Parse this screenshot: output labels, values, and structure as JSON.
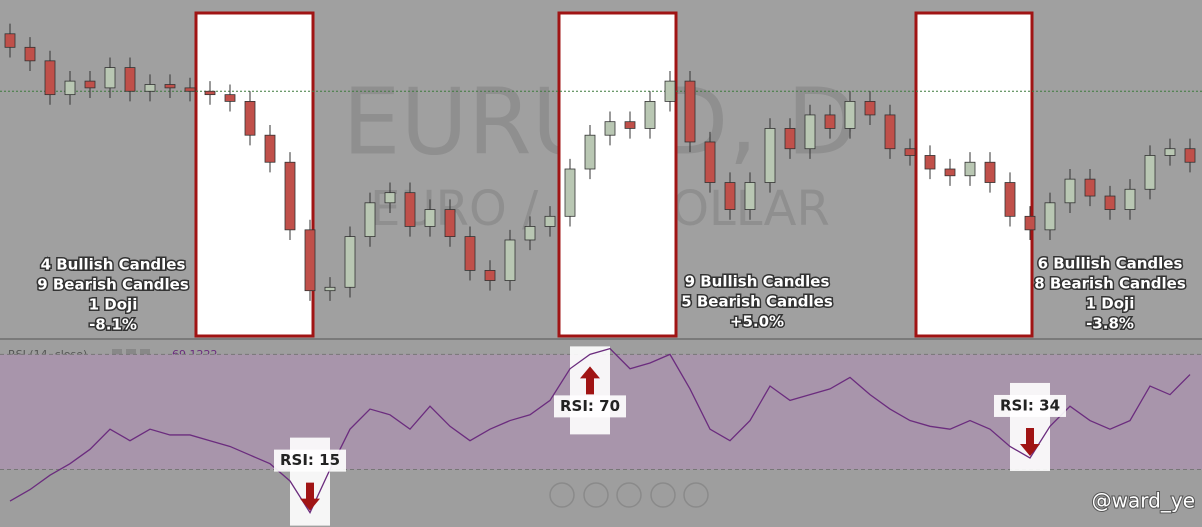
{
  "watermark": {
    "symbol": "EURUSD, D",
    "name": "EURO / US DOLLAR"
  },
  "indicator": {
    "name": "RSI (14, close)",
    "last": 69.1222
  },
  "credit": "@ward_ye",
  "summaries": [
    [
      "4 Bullish Candles",
      "9 Bearish Candles",
      "1 Doji",
      "-8.1%"
    ],
    [
      "9 Bullish Candles",
      "5 Bearish Candles",
      "+5.0%"
    ],
    [
      "6 Bullish Candles",
      "8 Bearish Candles",
      "1 Doji",
      "-3.8%"
    ]
  ],
  "callouts": [
    {
      "value": 15,
      "label": "RSI: 15"
    },
    {
      "value": 70,
      "label": "RSI: 70"
    },
    {
      "value": 34,
      "label": "RSI: 34"
    }
  ],
  "chart_data": [
    {
      "type": "candlestick",
      "ylim": [
        0,
        100
      ],
      "up_color": "#b9c7b3",
      "down_color": "#c0504a",
      "last_price": 73,
      "open": [
        90,
        86,
        82,
        72,
        76,
        74,
        80,
        73,
        75,
        74,
        73,
        72,
        70,
        60,
        52,
        32,
        14,
        15,
        30,
        40,
        43,
        33,
        38,
        30,
        20,
        17,
        29,
        33,
        36,
        50,
        60,
        64,
        62,
        70,
        76,
        58,
        46,
        38,
        46,
        62,
        56,
        66,
        62,
        70,
        66,
        56,
        54,
        50,
        48,
        52,
        46,
        36,
        32,
        40,
        47,
        42,
        38,
        44,
        54,
        56
      ],
      "high": [
        93,
        89,
        85,
        79,
        79,
        83,
        83,
        78,
        78,
        77,
        76,
        75,
        73,
        63,
        55,
        35,
        18,
        33,
        43,
        46,
        46,
        41,
        41,
        33,
        23,
        32,
        36,
        39,
        53,
        63,
        67,
        67,
        73,
        79,
        79,
        61,
        49,
        49,
        65,
        65,
        69,
        69,
        73,
        73,
        69,
        59,
        57,
        53,
        55,
        55,
        49,
        39,
        43,
        50,
        50,
        45,
        47,
        57,
        59,
        59
      ],
      "low": [
        83,
        79,
        69,
        69,
        71,
        71,
        70,
        70,
        71,
        70,
        69,
        67,
        57,
        49,
        29,
        11,
        11,
        12,
        27,
        37,
        30,
        30,
        27,
        17,
        14,
        14,
        26,
        30,
        33,
        47,
        57,
        59,
        59,
        67,
        55,
        43,
        35,
        35,
        43,
        53,
        53,
        59,
        59,
        63,
        53,
        51,
        47,
        45,
        45,
        43,
        33,
        29,
        29,
        37,
        39,
        35,
        35,
        41,
        51,
        49
      ],
      "close": [
        86,
        82,
        72,
        76,
        74,
        80,
        73,
        75,
        74,
        73,
        72,
        70,
        60,
        52,
        32,
        14,
        15,
        30,
        40,
        43,
        33,
        38,
        30,
        20,
        17,
        29,
        33,
        36,
        50,
        60,
        64,
        62,
        70,
        76,
        58,
        46,
        38,
        46,
        62,
        56,
        66,
        62,
        70,
        66,
        56,
        54,
        50,
        48,
        52,
        46,
        36,
        32,
        40,
        47,
        42,
        38,
        44,
        54,
        56,
        52
      ]
    },
    {
      "type": "line",
      "ylim": [
        10,
        75
      ],
      "bands": [
        30,
        70
      ],
      "color": "#6b2c7e",
      "values": [
        19,
        23,
        28,
        32,
        37,
        44,
        40,
        44,
        42,
        42,
        40,
        38,
        35,
        32,
        26,
        15,
        30,
        44,
        51,
        49,
        44,
        52,
        45,
        40,
        44,
        47,
        49,
        54,
        65,
        70,
        72,
        65,
        67,
        70,
        58,
        44,
        40,
        47,
        59,
        54,
        56,
        58,
        62,
        56,
        51,
        47,
        45,
        44,
        47,
        44,
        38,
        34,
        45,
        52,
        47,
        44,
        47,
        59,
        56,
        63
      ]
    }
  ]
}
